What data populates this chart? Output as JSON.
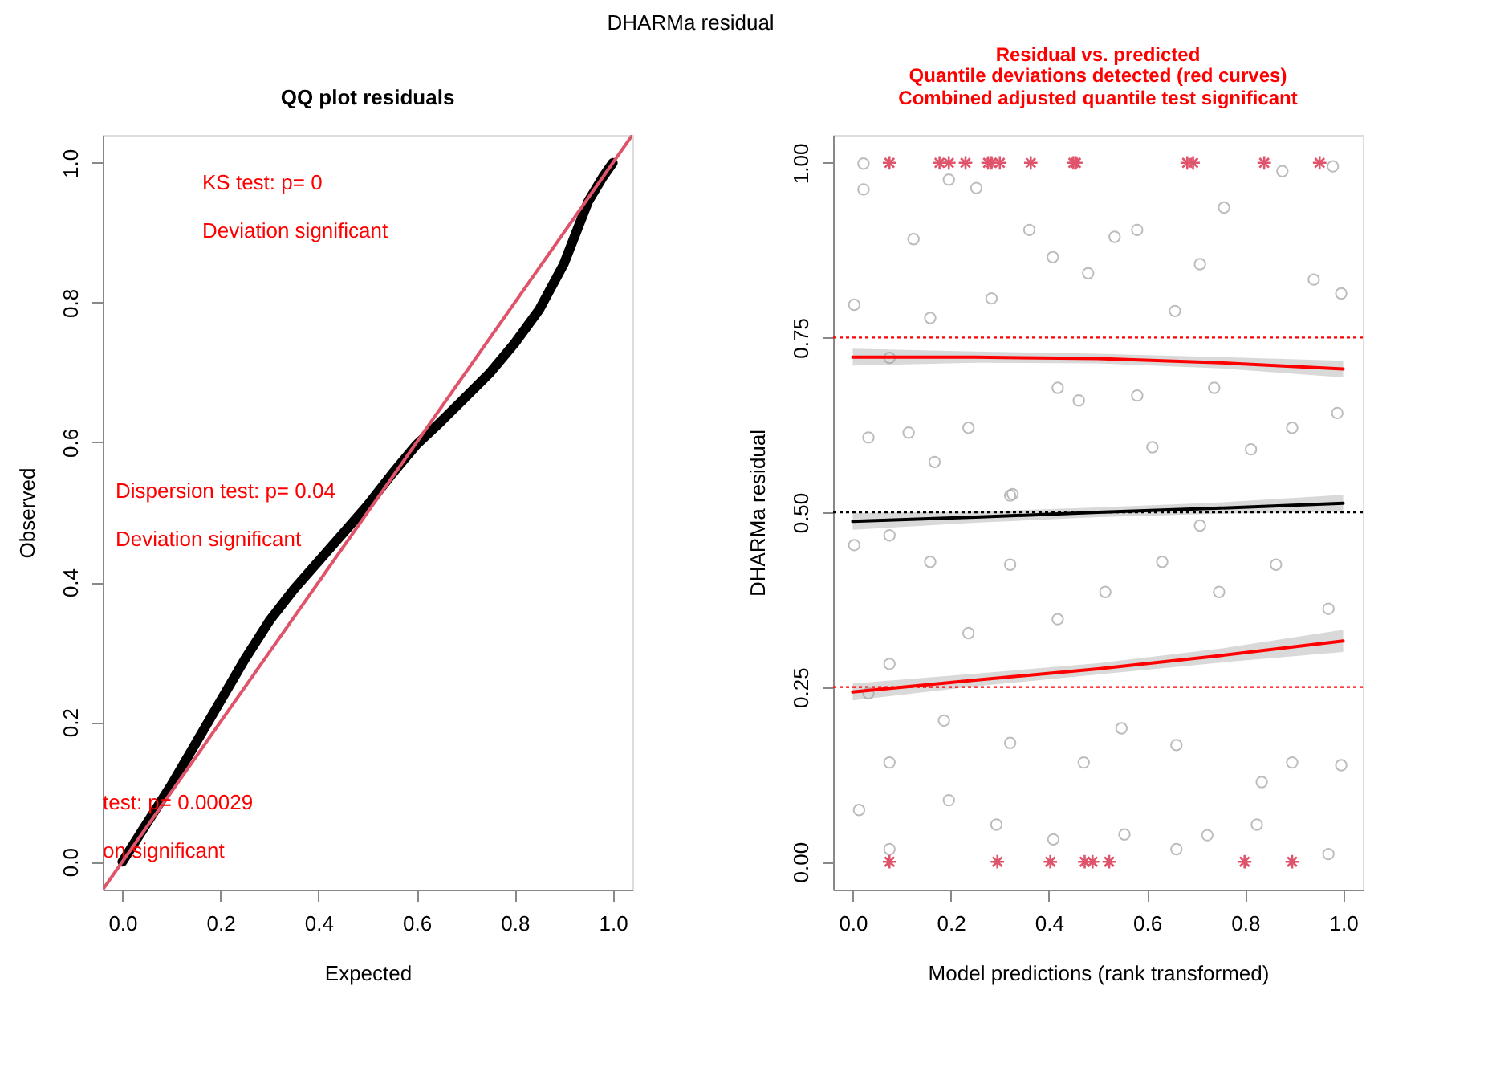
{
  "chart_data": [
    {
      "type": "line",
      "title": "QQ plot residuals",
      "xlabel": "Expected",
      "ylabel": "Observed",
      "annotations": [
        "DHARMa residual",
        "KS test: p= 0",
        "Deviation  significant",
        "Dispersion test: p= 0.04",
        "Deviation  significant",
        "test: p= 0.00029",
        "on  significant"
      ],
      "series": [
        {
          "type": "line",
          "color": "#000000",
          "x": [
            0,
            0.05,
            0.1,
            0.15,
            0.2,
            0.25,
            0.3,
            0.35,
            0.4,
            0.45,
            0.5,
            0.55,
            0.6,
            0.65,
            0.7,
            0.75,
            0.8,
            0.85,
            0.9,
            0.95,
            0.98,
            1.0
          ],
          "values": [
            0,
            0.055,
            0.11,
            0.17,
            0.23,
            0.29,
            0.345,
            0.39,
            0.43,
            0.47,
            0.51,
            0.555,
            0.597,
            0.63,
            0.665,
            0.7,
            0.742,
            0.79,
            0.855,
            0.945,
            0.98,
            1.0
          ]
        },
        {
          "type": "line",
          "color": "#df536b",
          "x": [
            -0.04,
            1.04
          ],
          "values": [
            -0.04,
            1.04
          ]
        }
      ],
      "xlim": [
        -0.04,
        1.04
      ],
      "ylim": [
        -0.04,
        1.04
      ],
      "xticks": [
        {
          "value": 0,
          "label": "0.0"
        },
        {
          "value": 0.2,
          "label": "0.2"
        },
        {
          "value": 0.4,
          "label": "0.4"
        },
        {
          "value": 0.6,
          "label": "0.6"
        },
        {
          "value": 0.8,
          "label": "0.8"
        },
        {
          "value": 1,
          "label": "1.0"
        }
      ],
      "yticks": [
        {
          "value": 0,
          "label": "0.0"
        },
        {
          "value": 0.2,
          "label": "0.2"
        },
        {
          "value": 0.4,
          "label": "0.4"
        },
        {
          "value": 0.6,
          "label": "0.6"
        },
        {
          "value": 0.8,
          "label": "0.8"
        },
        {
          "value": 1,
          "label": "1.0"
        }
      ],
      "grid": false,
      "line_style": "solid"
    },
    {
      "type": "scatter",
      "title": "Residual vs. predicted",
      "subtitle": "Quantile deviations detected (red curves)\nCombined adjusted quantile test significant",
      "xlabel": "Model predictions (rank transformed)",
      "ylabel": "DHARMa residual",
      "series": [
        {
          "type": "scatter",
          "marker": "circle",
          "color": "#a0a0a0",
          "x": [
            0.022,
            0.022,
            0.124,
            0.196,
            0.252,
            0.408,
            0.48,
            0.58,
            0.657,
            0.757,
            0.876,
            0.979,
            0.996,
            0.003,
            0.032,
            0.114,
            0.167,
            0.236,
            0.326,
            0.418,
            0.461,
            0.58,
            0.611,
            0.737,
            0.812,
            0.896,
            0.988,
            0.94,
            0.708,
            0.534,
            0.36,
            0.283,
            0.158,
            0.075,
            0.003,
            0.158,
            0.236,
            0.321,
            0.418,
            0.515,
            0.631,
            0.747,
            0.863,
            0.97,
            0.032,
            0.186,
            0.321,
            0.471,
            0.548,
            0.66,
            0.834,
            0.896,
            0.996,
            0.013,
            0.196,
            0.293,
            0.409,
            0.554,
            0.66,
            0.723,
            0.824,
            0.97,
            0.075,
            0.075,
            0.075,
            0.075,
            0.321,
            0.708
          ],
          "values": [
            0.999,
            0.962,
            0.891,
            0.976,
            0.964,
            0.865,
            0.842,
            0.904,
            0.788,
            0.936,
            0.988,
            0.995,
            0.813,
            0.797,
            0.607,
            0.614,
            0.572,
            0.621,
            0.526,
            0.678,
            0.66,
            0.667,
            0.593,
            0.678,
            0.59,
            0.621,
            0.642,
            0.833,
            0.855,
            0.894,
            0.904,
            0.806,
            0.778,
            0.721,
            0.453,
            0.429,
            0.327,
            0.425,
            0.347,
            0.386,
            0.429,
            0.386,
            0.425,
            0.362,
            0.241,
            0.202,
            0.17,
            0.142,
            0.191,
            0.167,
            0.114,
            0.142,
            0.138,
            0.074,
            0.088,
            0.053,
            0.032,
            0.039,
            0.018,
            0.038,
            0.053,
            0.011,
            0.283,
            0.467,
            0.018,
            0.142,
            0.524,
            0.481
          ]
        },
        {
          "type": "scatter",
          "marker": "cross",
          "color": "#df536b",
          "x": [
            0.075,
            0.177,
            0.196,
            0.23,
            0.276,
            0.283,
            0.3,
            0.363,
            0.45,
            0.455,
            0.682,
            0.694,
            0.839,
            0.952
          ],
          "values": [
            1,
            1,
            1,
            1,
            1,
            1,
            1,
            1,
            1,
            1,
            1,
            1,
            1,
            1
          ]
        },
        {
          "type": "scatter",
          "marker": "cross",
          "color": "#df536b",
          "x": [
            0.075,
            0.295,
            0.403,
            0.473,
            0.489,
            0.523,
            0.799,
            0.896
          ],
          "values": [
            0,
            0,
            0,
            0,
            0,
            0,
            0,
            0
          ]
        },
        {
          "type": "line",
          "color": "#ff0000",
          "x": [
            0,
            0.25,
            0.5,
            0.75,
            1
          ],
          "values": [
            0.243,
            0.26,
            0.276,
            0.295,
            0.316
          ],
          "lower": [
            0.231,
            0.251,
            0.268,
            0.285,
            0.3
          ],
          "upper": [
            0.255,
            0.269,
            0.284,
            0.305,
            0.332
          ]
        },
        {
          "type": "line",
          "color": "#000000",
          "x": [
            0,
            0.25,
            0.5,
            0.75,
            1
          ],
          "values": [
            0.487,
            0.493,
            0.5,
            0.506,
            0.513
          ],
          "lower": [
            0.475,
            0.485,
            0.493,
            0.498,
            0.501
          ],
          "upper": [
            0.499,
            0.501,
            0.507,
            0.514,
            0.525
          ]
        },
        {
          "type": "line",
          "color": "#ff0000",
          "x": [
            0,
            0.25,
            0.5,
            0.75,
            1
          ],
          "values": [
            0.722,
            0.722,
            0.72,
            0.714,
            0.705
          ],
          "lower": [
            0.71,
            0.714,
            0.713,
            0.706,
            0.693
          ],
          "upper": [
            0.734,
            0.73,
            0.727,
            0.722,
            0.717
          ]
        }
      ],
      "ref_lines": [
        {
          "axis": "y",
          "value": 0.25,
          "color": "#ff0000",
          "line_style": "dotted"
        },
        {
          "axis": "y",
          "value": 0.5,
          "color": "#000000",
          "line_style": "dotted"
        },
        {
          "axis": "y",
          "value": 0.75,
          "color": "#ff0000",
          "line_style": "dotted"
        }
      ],
      "xlim": [
        -0.04,
        1.04
      ],
      "ylim": [
        -0.04,
        1.04
      ],
      "xticks": [
        {
          "value": 0,
          "label": "0.0"
        },
        {
          "value": 0.2,
          "label": "0.2"
        },
        {
          "value": 0.4,
          "label": "0.4"
        },
        {
          "value": 0.6,
          "label": "0.6"
        },
        {
          "value": 0.8,
          "label": "0.8"
        },
        {
          "value": 1,
          "label": "1.0"
        }
      ],
      "yticks": [
        {
          "value": 0,
          "label": "0.00"
        },
        {
          "value": 0.25,
          "label": "0.25"
        },
        {
          "value": 0.5,
          "label": "0.50"
        },
        {
          "value": 0.75,
          "label": "0.75"
        },
        {
          "value": 1,
          "label": "1.00"
        }
      ],
      "grid": false
    }
  ]
}
